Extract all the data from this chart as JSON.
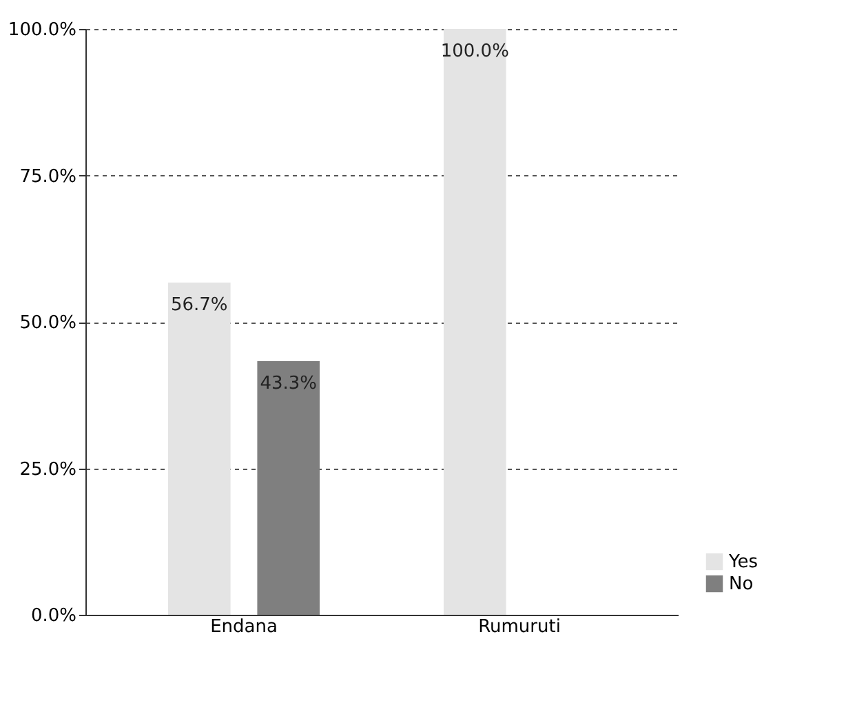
{
  "chart_data": {
    "type": "bar",
    "categories": [
      "Endana",
      "Rumuruti"
    ],
    "series": [
      {
        "name": "Yes",
        "color": "#e4e4e4",
        "values": [
          56.7,
          100.0
        ],
        "value_labels": [
          "56.7%",
          "100.0%"
        ]
      },
      {
        "name": "No",
        "color": "#7f7f7f",
        "values": [
          43.3,
          null
        ],
        "value_labels": [
          "43.3%",
          null
        ]
      }
    ],
    "ylim": [
      0,
      100
    ],
    "yticks": [
      {
        "value": 0,
        "label": "0.0%"
      },
      {
        "value": 25,
        "label": "25.0%"
      },
      {
        "value": 50,
        "label": "50.0%"
      },
      {
        "value": 75,
        "label": "75.0%"
      },
      {
        "value": 100,
        "label": "100.0%"
      }
    ],
    "grid": "y",
    "legend": "bottom right"
  }
}
